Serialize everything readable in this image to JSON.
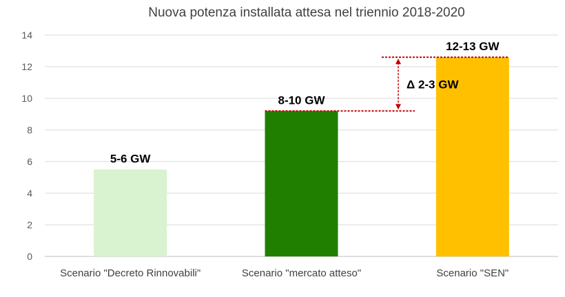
{
  "chart_data": {
    "type": "bar",
    "title": "Nuova potenza installata attesa nel triennio 2018-2020",
    "xlabel": "",
    "ylabel": "",
    "ylim": [
      0,
      14
    ],
    "yticks": [
      0,
      2,
      4,
      6,
      8,
      10,
      12,
      14
    ],
    "grid": true,
    "legend": "none",
    "categories": [
      "Scenario \"Decreto Rinnovabili\"",
      "Scenario \"mercato atteso\"",
      "Scenario \"SEN\""
    ],
    "values": [
      5.5,
      9.2,
      12.6
    ],
    "data_labels": [
      "5-6 GW",
      "8-10 GW",
      "12-13 GW"
    ],
    "colors": [
      "#d9f2d0",
      "#217f00",
      "#ffc000"
    ],
    "annotation": {
      "text": "Δ 2-3 GW",
      "from_value": 9.2,
      "to_value": 12.6,
      "color": "#c00000"
    }
  }
}
